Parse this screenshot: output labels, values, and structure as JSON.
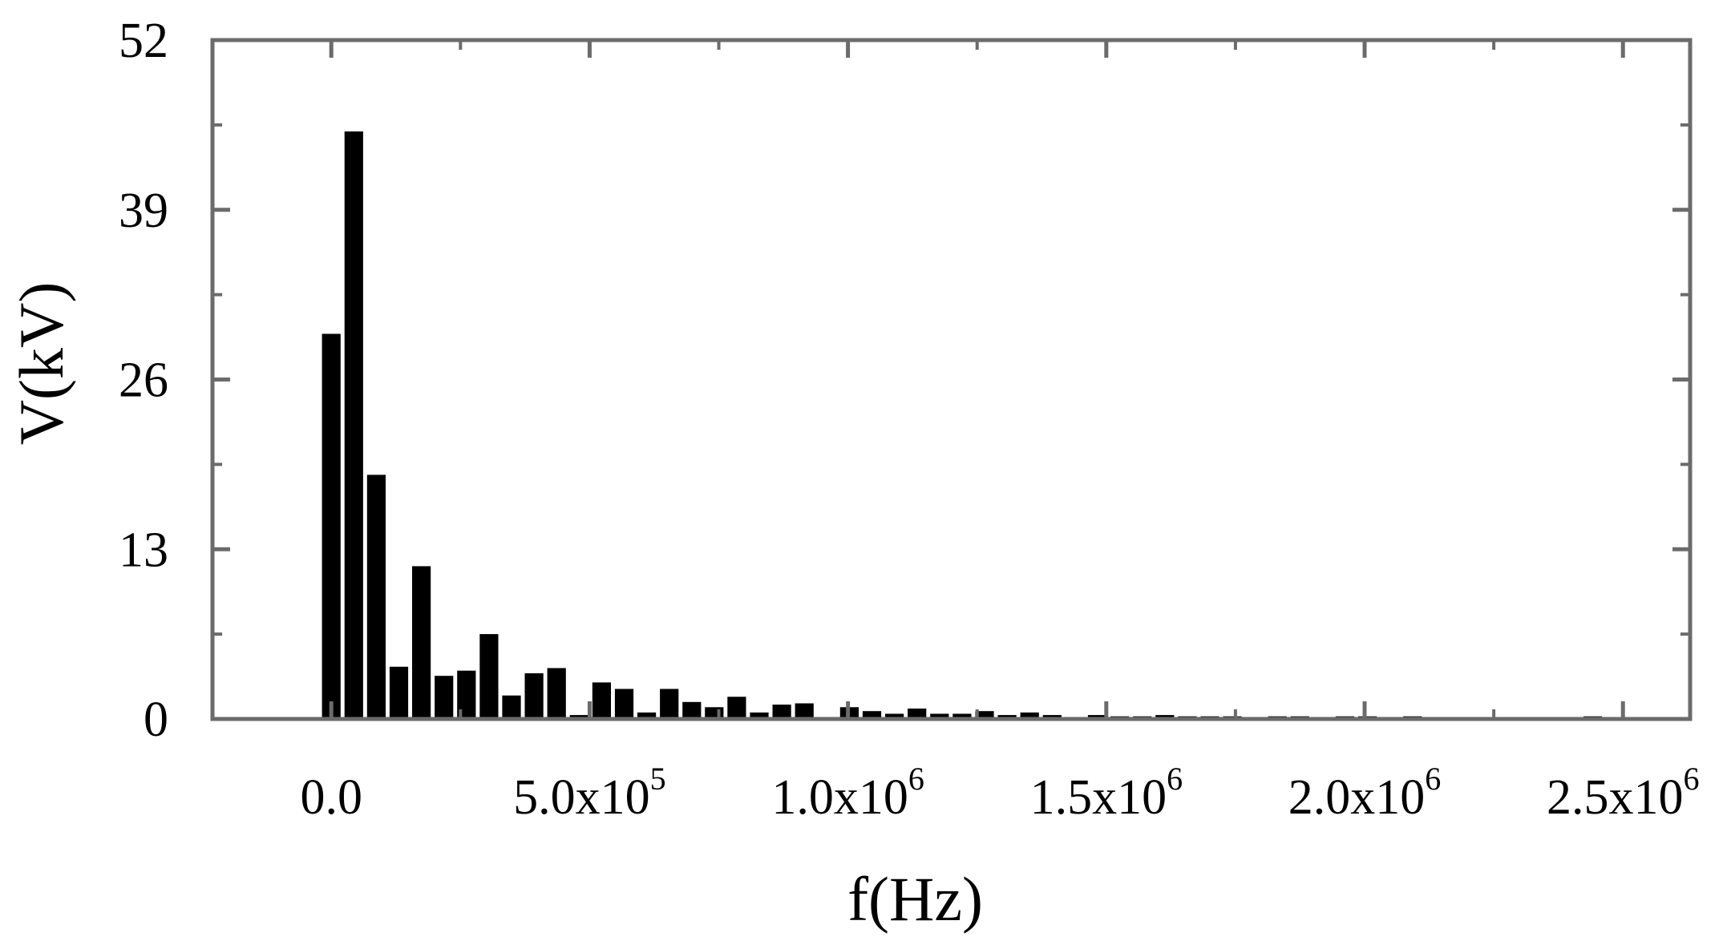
{
  "chart_data": {
    "type": "bar",
    "title": "",
    "xlabel": "f(Hz)",
    "ylabel": "V(kV)",
    "xlim": [
      -230000,
      2630000
    ],
    "ylim": [
      0,
      52
    ],
    "bar_width": 36000,
    "grid": false,
    "x_ticks": [
      {
        "value": 0,
        "mantissa": "0.0",
        "exponent": ""
      },
      {
        "value": 500000,
        "mantissa": "5.0x10",
        "exponent": "5"
      },
      {
        "value": 1000000,
        "mantissa": "1.0x10",
        "exponent": "6"
      },
      {
        "value": 1500000,
        "mantissa": "1.5x10",
        "exponent": "6"
      },
      {
        "value": 2000000,
        "mantissa": "2.0x10",
        "exponent": "6"
      },
      {
        "value": 2500000,
        "mantissa": "2.5x10",
        "exponent": "6"
      }
    ],
    "y_ticks": [
      {
        "value": 0,
        "label": "0"
      },
      {
        "value": 13,
        "label": "13"
      },
      {
        "value": 26,
        "label": "26"
      },
      {
        "value": 39,
        "label": "39"
      },
      {
        "value": 52,
        "label": "52"
      }
    ],
    "color": "#000000",
    "x": [
      0,
      43600,
      87200,
      130800,
      174400,
      218000,
      261600,
      305200,
      348800,
      392400,
      436000,
      479600,
      523200,
      566800,
      610400,
      654000,
      697600,
      741200,
      784800,
      828400,
      872000,
      915600,
      959200,
      1002800,
      1046400,
      1090000,
      1133600,
      1177200,
      1220800,
      1264400,
      1308000,
      1351600,
      1395200,
      1438800,
      1482400,
      1526000,
      1569600,
      1613200,
      1656800,
      1700400,
      1744000,
      1787600,
      1831200,
      1874800,
      1918400,
      1962000,
      2005600,
      2049200,
      2092800,
      2136400,
      2180000,
      2223600,
      2267200,
      2310800,
      2354400,
      2398000,
      2441600,
      2485200,
      2528800,
      2572400
    ],
    "values": [
      29.5,
      45.0,
      18.7,
      4.0,
      11.7,
      3.3,
      3.7,
      6.5,
      1.8,
      3.5,
      3.9,
      0.3,
      2.8,
      2.3,
      0.5,
      2.3,
      1.3,
      0.9,
      1.7,
      0.5,
      1.1,
      1.2,
      0.1,
      0.9,
      0.6,
      0.4,
      0.8,
      0.4,
      0.4,
      0.6,
      0.3,
      0.5,
      0.3,
      0.1,
      0.3,
      0.2,
      0.2,
      0.3,
      0.2,
      0.2,
      0.2,
      0.1,
      0.2,
      0.2,
      0.1,
      0.2,
      0.2,
      0.1,
      0.2,
      0.1,
      0.1,
      0.1,
      0.1,
      0.1,
      0.1,
      0.1,
      0.2,
      0.1,
      0.1,
      0.1
    ]
  }
}
